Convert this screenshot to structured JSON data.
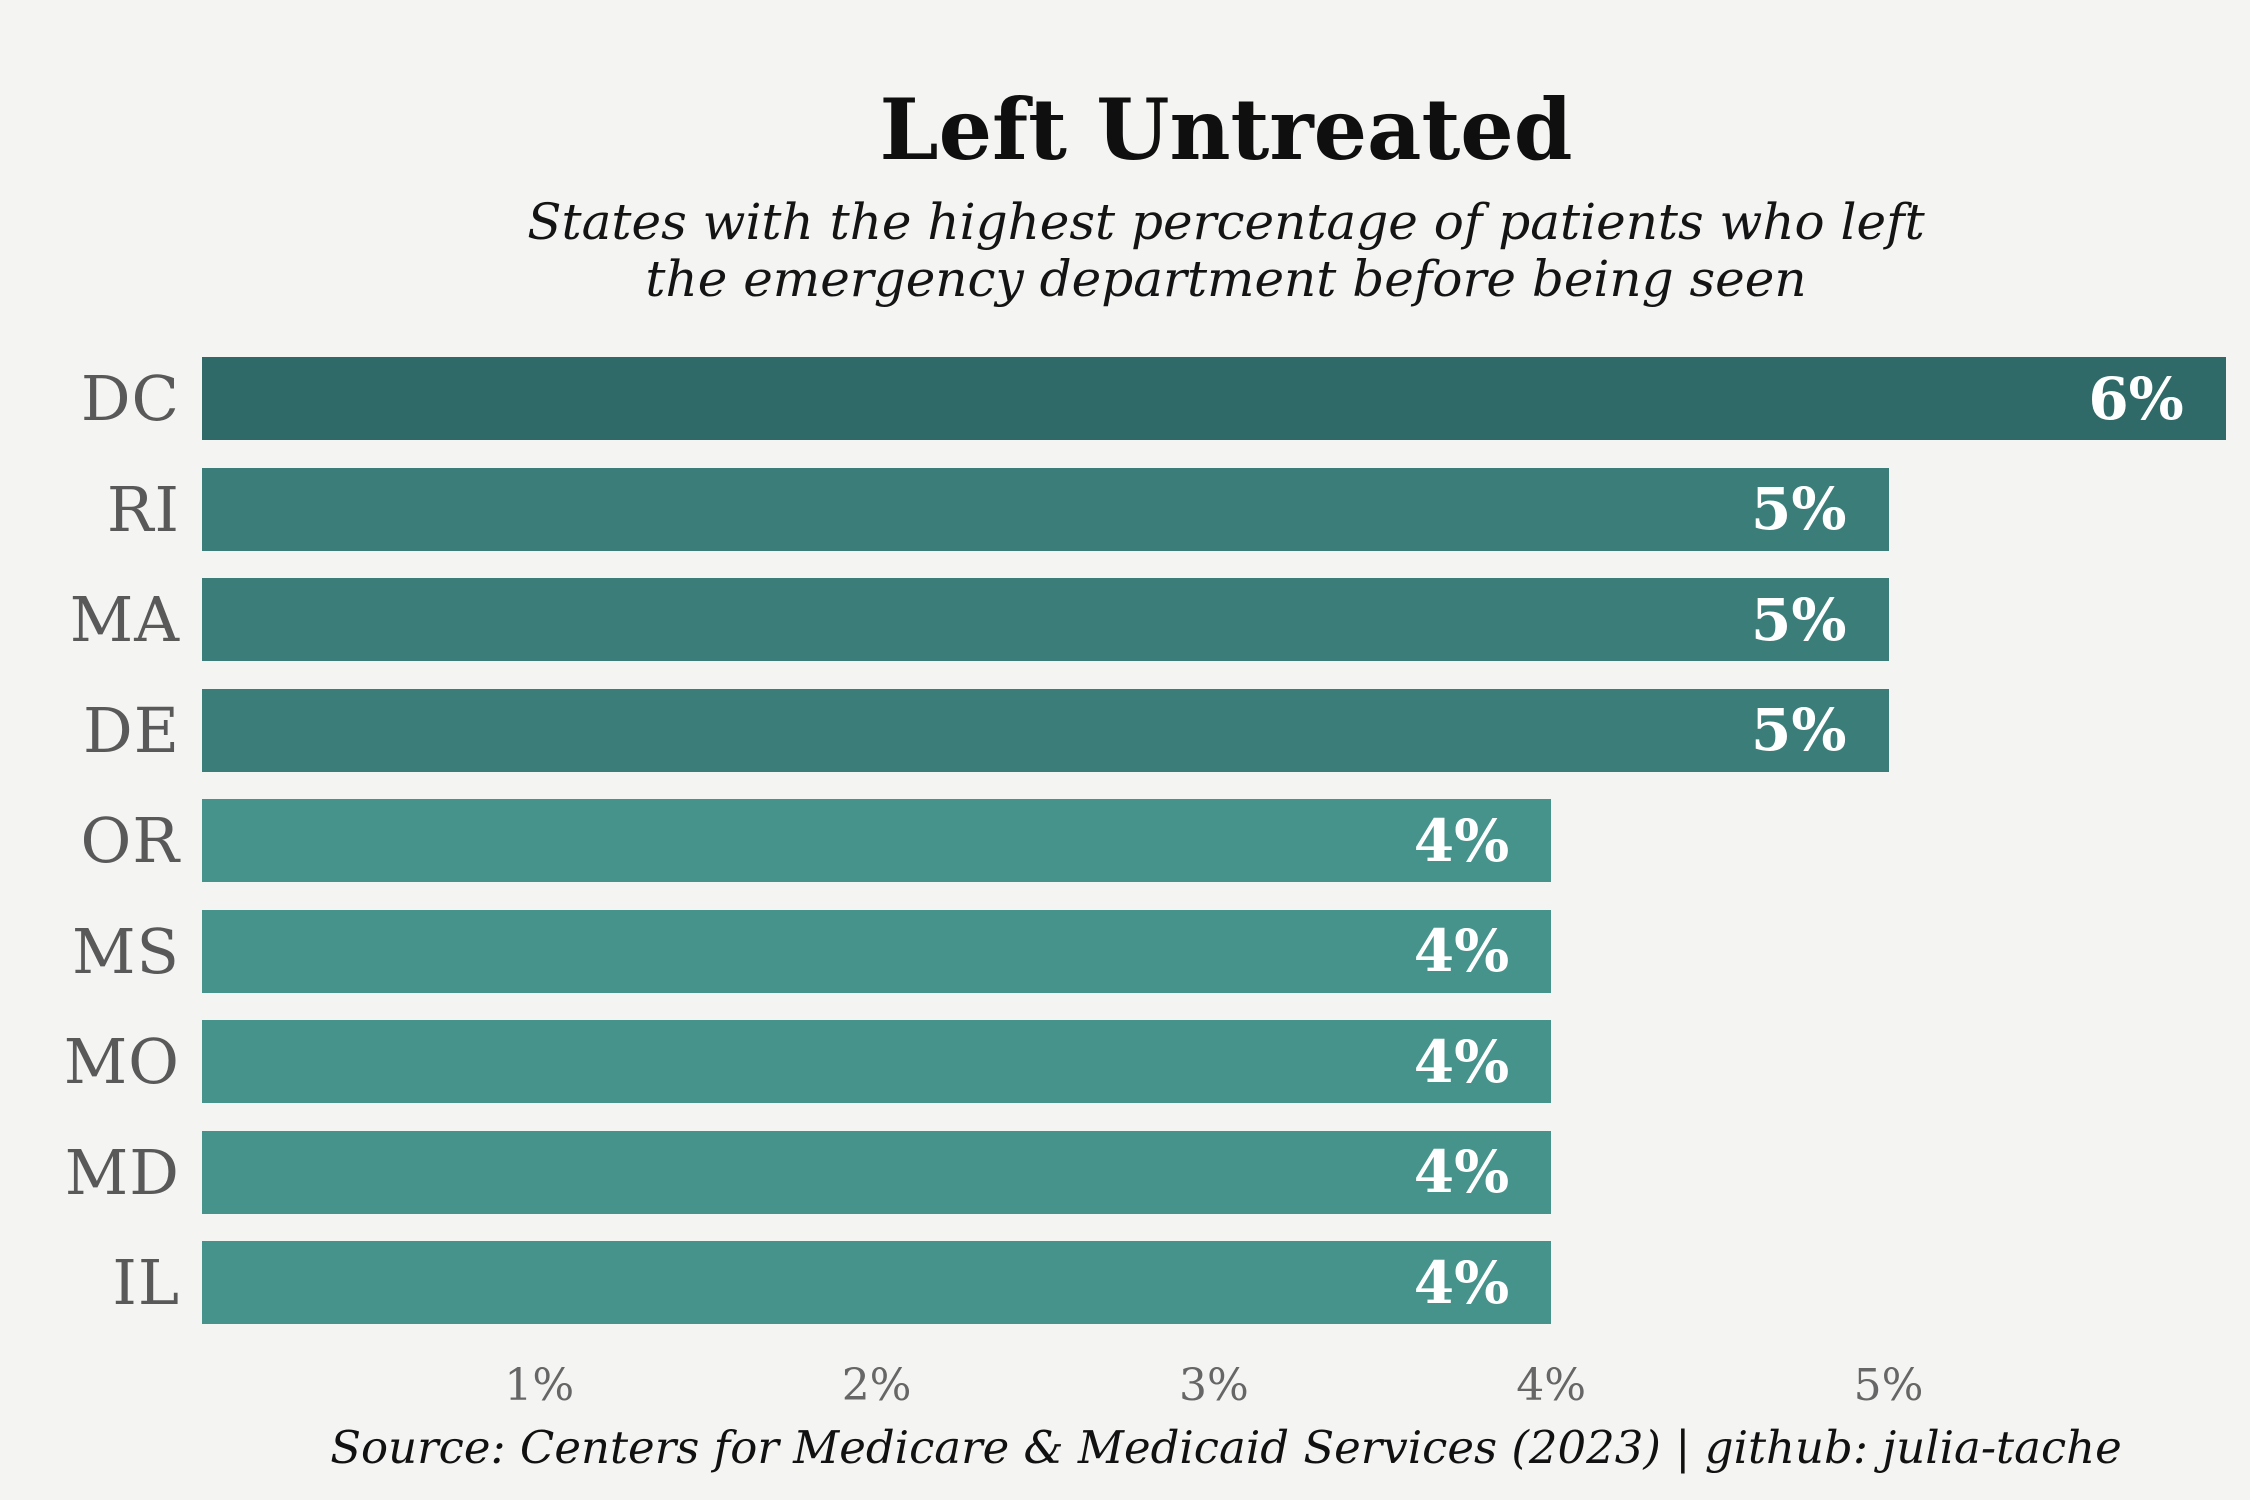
{
  "chart_data": {
    "type": "bar",
    "orientation": "horizontal",
    "title": "Left Untreated",
    "subtitle_lines": [
      "States with the highest percentage of patients who left",
      "the emergency department before being seen"
    ],
    "categories": [
      "DC",
      "RI",
      "MA",
      "DE",
      "OR",
      "MS",
      "MO",
      "MD",
      "IL"
    ],
    "values": [
      6,
      5,
      5,
      5,
      4,
      4,
      4,
      4,
      4
    ],
    "rows": [
      {
        "state": "DC",
        "value": 6,
        "label": "6%",
        "color": "#2f6a68"
      },
      {
        "state": "RI",
        "value": 5,
        "label": "5%",
        "color": "#3b7e79"
      },
      {
        "state": "MA",
        "value": 5,
        "label": "5%",
        "color": "#3b7e79"
      },
      {
        "state": "DE",
        "value": 5,
        "label": "5%",
        "color": "#3b7e79"
      },
      {
        "state": "OR",
        "value": 4,
        "label": "4%",
        "color": "#45938a"
      },
      {
        "state": "MS",
        "value": 4,
        "label": "4%",
        "color": "#45938a"
      },
      {
        "state": "MO",
        "value": 4,
        "label": "4%",
        "color": "#45938a"
      },
      {
        "state": "MD",
        "value": 4,
        "label": "4%",
        "color": "#45938a"
      },
      {
        "state": "IL",
        "value": 4,
        "label": "4%",
        "color": "#45938a"
      }
    ],
    "xlabel": "",
    "ylabel": "",
    "xlim": [
      0,
      6
    ],
    "x_ticks": [
      {
        "value": 1,
        "label": "1%"
      },
      {
        "value": 2,
        "label": "2%"
      },
      {
        "value": 3,
        "label": "3%"
      },
      {
        "value": 4,
        "label": "4%"
      },
      {
        "value": 5,
        "label": "5%"
      }
    ],
    "grid": false,
    "legend": false,
    "source": "Source: Centers for Medicare & Medicaid Services (2023) | github: julia-tache",
    "colors": {
      "background": "#f4f4f3",
      "bar_6pct": "#2f6a68",
      "bar_5pct": "#3b7e79",
      "bar_4pct": "#45938a",
      "state_label": "#595959",
      "tick_label": "#666666",
      "value_label": "#ffffff",
      "title_text": "#0f0f0f"
    }
  }
}
